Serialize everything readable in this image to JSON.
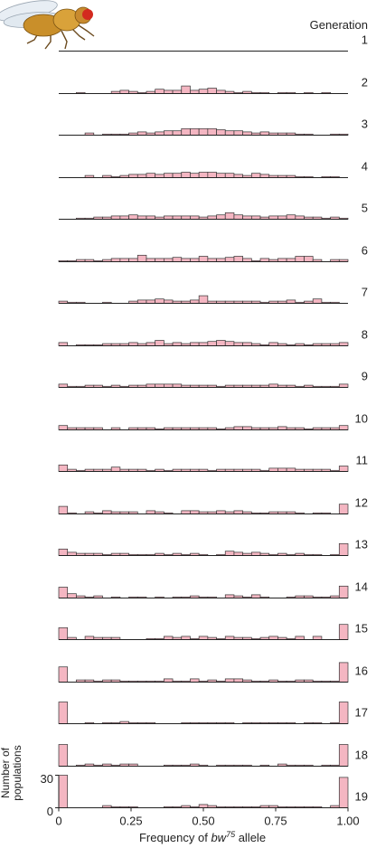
{
  "chart_data": {
    "type": "bar",
    "title": "",
    "header": "Generation",
    "xlabel": {
      "prefix": "Frequency of ",
      "gene": "bw",
      "superscript": "75",
      "suffix": " allele"
    },
    "ylabel_lines": [
      "Number of",
      "populations"
    ],
    "ylim": [
      0,
      30
    ],
    "y_ticks": [
      "30",
      "0"
    ],
    "x_ticks": [
      "0",
      "0.25",
      "0.50",
      "0.75",
      "1.00"
    ],
    "x_tick_values": [
      0,
      0.25,
      0.5,
      0.75,
      1.0
    ],
    "xlim": [
      0,
      1
    ],
    "bin_count": 33,
    "bar_fill": "#f4b6c2",
    "bar_stroke": "#333333",
    "generations": [
      {
        "label": "1",
        "counts": [
          0,
          0,
          0,
          0,
          0,
          0,
          0,
          0,
          0,
          0,
          0,
          0,
          0,
          0,
          0,
          0,
          0,
          0,
          0,
          0,
          0,
          0,
          0,
          0,
          0,
          0,
          0,
          0,
          0,
          0,
          0,
          0,
          0
        ]
      },
      {
        "label": "2",
        "counts": [
          0,
          0,
          1,
          0,
          0,
          0,
          2,
          3,
          2,
          1,
          2,
          4,
          3,
          3,
          7,
          3,
          4,
          5,
          3,
          2,
          1,
          2,
          1,
          1,
          0,
          1,
          1,
          0,
          1,
          0,
          1,
          0,
          0
        ]
      },
      {
        "label": "3",
        "counts": [
          0,
          0,
          0,
          2,
          0,
          1,
          1,
          1,
          2,
          3,
          2,
          3,
          4,
          4,
          6,
          6,
          6,
          6,
          5,
          4,
          4,
          3,
          2,
          3,
          2,
          2,
          2,
          1,
          1,
          0,
          0,
          1,
          1
        ]
      },
      {
        "label": "4",
        "counts": [
          0,
          0,
          0,
          2,
          0,
          2,
          1,
          2,
          3,
          3,
          4,
          3,
          4,
          4,
          5,
          4,
          5,
          5,
          4,
          4,
          3,
          2,
          4,
          3,
          2,
          2,
          2,
          1,
          1,
          0,
          1,
          1,
          0
        ]
      },
      {
        "label": "5",
        "counts": [
          0,
          0,
          1,
          1,
          2,
          2,
          3,
          3,
          4,
          3,
          3,
          2,
          3,
          3,
          3,
          3,
          2,
          3,
          4,
          6,
          4,
          3,
          3,
          2,
          3,
          3,
          4,
          3,
          2,
          2,
          1,
          2,
          1
        ]
      },
      {
        "label": "6",
        "counts": [
          1,
          1,
          2,
          2,
          1,
          2,
          3,
          3,
          3,
          6,
          3,
          3,
          3,
          4,
          3,
          3,
          5,
          3,
          3,
          4,
          5,
          3,
          1,
          3,
          2,
          3,
          3,
          5,
          5,
          2,
          0,
          2,
          2
        ]
      },
      {
        "label": "7",
        "counts": [
          2,
          1,
          1,
          0,
          0,
          1,
          0,
          0,
          2,
          3,
          3,
          4,
          3,
          2,
          2,
          3,
          7,
          2,
          2,
          2,
          2,
          2,
          2,
          1,
          2,
          2,
          3,
          1,
          2,
          4,
          1,
          1,
          0
        ]
      },
      {
        "label": "8",
        "counts": [
          3,
          0,
          1,
          1,
          1,
          2,
          2,
          2,
          3,
          2,
          3,
          5,
          2,
          3,
          2,
          3,
          3,
          4,
          5,
          4,
          3,
          3,
          2,
          1,
          3,
          2,
          1,
          2,
          1,
          2,
          2,
          2,
          3
        ]
      },
      {
        "label": "9",
        "counts": [
          3,
          1,
          1,
          2,
          2,
          1,
          2,
          1,
          2,
          2,
          3,
          3,
          3,
          3,
          2,
          2,
          2,
          2,
          1,
          2,
          2,
          2,
          2,
          2,
          3,
          2,
          2,
          1,
          2,
          1,
          1,
          1,
          3
        ]
      },
      {
        "label": "10",
        "counts": [
          4,
          2,
          2,
          2,
          2,
          0,
          2,
          0,
          2,
          2,
          2,
          1,
          2,
          2,
          2,
          2,
          2,
          2,
          1,
          2,
          3,
          3,
          2,
          2,
          2,
          3,
          2,
          2,
          1,
          2,
          2,
          2,
          4
        ]
      },
      {
        "label": "11",
        "counts": [
          6,
          2,
          1,
          2,
          2,
          2,
          4,
          2,
          2,
          2,
          1,
          2,
          1,
          2,
          2,
          2,
          2,
          1,
          2,
          2,
          2,
          2,
          2,
          1,
          3,
          3,
          3,
          2,
          2,
          2,
          2,
          1,
          5
        ]
      },
      {
        "label": "12",
        "counts": [
          7,
          1,
          0,
          2,
          1,
          3,
          2,
          2,
          2,
          0,
          3,
          2,
          1,
          0,
          3,
          3,
          2,
          2,
          3,
          2,
          3,
          2,
          1,
          1,
          2,
          2,
          2,
          1,
          0,
          1,
          1,
          0,
          9
        ]
      },
      {
        "label": "13",
        "counts": [
          6,
          3,
          2,
          2,
          2,
          1,
          2,
          2,
          1,
          1,
          1,
          2,
          1,
          2,
          1,
          2,
          1,
          0,
          1,
          4,
          3,
          2,
          3,
          2,
          1,
          2,
          1,
          2,
          1,
          1,
          0,
          1,
          11
        ]
      },
      {
        "label": "14",
        "counts": [
          10,
          4,
          2,
          1,
          2,
          0,
          1,
          0,
          1,
          1,
          0,
          1,
          0,
          1,
          1,
          2,
          1,
          1,
          0,
          3,
          2,
          1,
          3,
          1,
          0,
          0,
          1,
          2,
          2,
          1,
          1,
          2,
          11
        ]
      },
      {
        "label": "15",
        "counts": [
          11,
          2,
          0,
          3,
          2,
          2,
          2,
          0,
          0,
          0,
          1,
          1,
          3,
          2,
          3,
          1,
          3,
          2,
          1,
          3,
          2,
          2,
          1,
          2,
          3,
          2,
          1,
          3,
          0,
          3,
          0,
          0,
          14
        ]
      },
      {
        "label": "16",
        "counts": [
          14,
          0,
          2,
          2,
          1,
          2,
          2,
          1,
          1,
          1,
          1,
          1,
          3,
          1,
          1,
          3,
          1,
          2,
          1,
          3,
          3,
          2,
          1,
          1,
          2,
          1,
          1,
          2,
          2,
          1,
          1,
          1,
          18
        ]
      },
      {
        "label": "17",
        "counts": [
          20,
          0,
          0,
          1,
          0,
          1,
          1,
          2,
          1,
          1,
          1,
          0,
          0,
          0,
          1,
          1,
          1,
          1,
          1,
          1,
          0,
          1,
          1,
          1,
          1,
          1,
          1,
          0,
          1,
          1,
          0,
          1,
          20
        ]
      },
      {
        "label": "18",
        "counts": [
          20,
          0,
          1,
          2,
          1,
          2,
          1,
          2,
          2,
          0,
          0,
          0,
          1,
          1,
          1,
          2,
          1,
          0,
          1,
          1,
          1,
          1,
          0,
          1,
          0,
          2,
          1,
          1,
          1,
          0,
          1,
          1,
          20
        ]
      },
      {
        "label": "19",
        "counts": [
          30,
          0,
          0,
          0,
          0,
          2,
          1,
          1,
          1,
          0,
          0,
          0,
          1,
          1,
          2,
          1,
          3,
          2,
          1,
          1,
          1,
          1,
          1,
          2,
          2,
          1,
          1,
          1,
          1,
          1,
          0,
          2,
          28
        ]
      }
    ]
  }
}
